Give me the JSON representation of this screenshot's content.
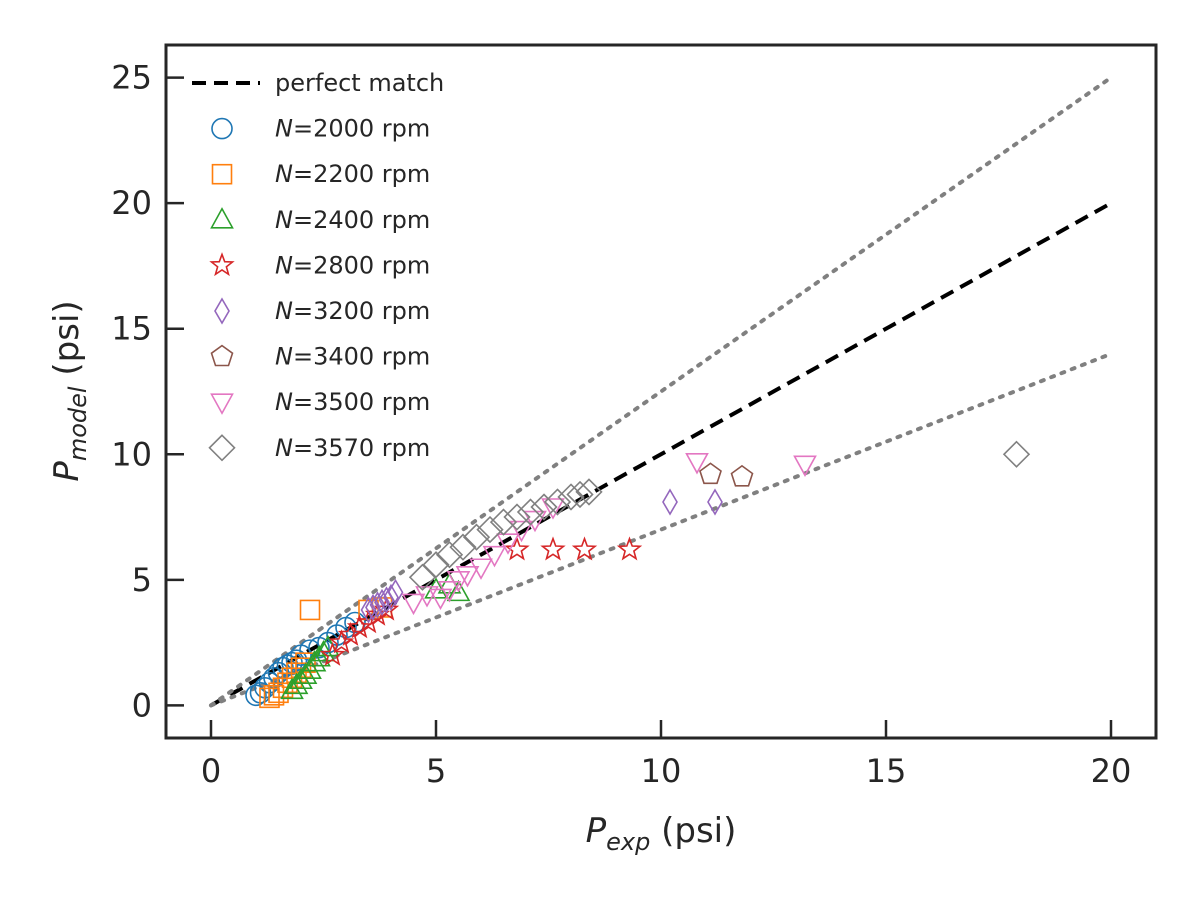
{
  "chart_data": {
    "type": "scatter",
    "title": "",
    "xlabel": {
      "main": "P",
      "sub": "exp",
      "unit": " (psi)"
    },
    "ylabel": {
      "main": "P",
      "sub": "model",
      "unit": " (psi)"
    },
    "xlim": [
      -1,
      21
    ],
    "ylim": [
      -1.3,
      26.3
    ],
    "xticks": [
      0,
      5,
      10,
      15,
      20
    ],
    "yticks": [
      0,
      5,
      10,
      15,
      20,
      25
    ],
    "grid": false,
    "legend_position": "top-left",
    "reference_lines": [
      {
        "name": "perfect match",
        "style": "dashed",
        "color": "#000000",
        "x": [
          0,
          20
        ],
        "y": [
          0,
          20
        ]
      },
      {
        "name": "",
        "style": "dotted",
        "color": "#808080",
        "x": [
          0,
          20
        ],
        "y": [
          0,
          25
        ]
      },
      {
        "name": "",
        "style": "dotted",
        "color": "#808080",
        "x": [
          0,
          20
        ],
        "y": [
          0,
          14
        ]
      }
    ],
    "series": [
      {
        "name": "2000",
        "marker": "circle",
        "color": "#1f77b4",
        "points": [
          [
            1.0,
            0.4
          ],
          [
            1.1,
            0.5
          ],
          [
            1.2,
            0.7
          ],
          [
            1.3,
            0.9
          ],
          [
            1.4,
            1.1
          ],
          [
            1.5,
            1.3
          ],
          [
            1.6,
            1.5
          ],
          [
            1.7,
            1.6
          ],
          [
            1.8,
            1.7
          ],
          [
            1.9,
            1.8
          ],
          [
            2.0,
            2.0
          ],
          [
            2.2,
            2.2
          ],
          [
            2.4,
            2.3
          ],
          [
            2.6,
            2.5
          ],
          [
            2.8,
            2.8
          ],
          [
            3.0,
            3.1
          ],
          [
            3.2,
            3.3
          ]
        ]
      },
      {
        "name": "2200",
        "marker": "square",
        "color": "#ff7f0e",
        "points": [
          [
            1.3,
            0.3
          ],
          [
            1.4,
            0.4
          ],
          [
            1.5,
            0.5
          ],
          [
            1.6,
            0.7
          ],
          [
            1.7,
            0.9
          ],
          [
            1.8,
            1.1
          ],
          [
            1.9,
            1.3
          ],
          [
            2.0,
            1.5
          ],
          [
            2.1,
            1.7
          ],
          [
            2.2,
            3.8
          ],
          [
            3.5,
            3.8
          ],
          [
            3.8,
            3.9
          ]
        ]
      },
      {
        "name": "2400",
        "marker": "triangle-up",
        "color": "#2ca02c",
        "points": [
          [
            1.8,
            0.6
          ],
          [
            1.9,
            0.8
          ],
          [
            2.0,
            1.0
          ],
          [
            2.1,
            1.2
          ],
          [
            2.2,
            1.4
          ],
          [
            2.3,
            1.7
          ],
          [
            2.4,
            1.9
          ],
          [
            2.5,
            2.1
          ],
          [
            2.6,
            2.3
          ],
          [
            5.0,
            4.6
          ],
          [
            5.3,
            4.8
          ],
          [
            5.5,
            4.5
          ]
        ]
      },
      {
        "name": "2800",
        "marker": "star",
        "color": "#d62728",
        "points": [
          [
            2.7,
            2.0
          ],
          [
            2.9,
            2.5
          ],
          [
            3.1,
            2.8
          ],
          [
            3.3,
            3.1
          ],
          [
            3.5,
            3.3
          ],
          [
            3.7,
            3.6
          ],
          [
            3.9,
            3.8
          ],
          [
            6.8,
            6.2
          ],
          [
            7.6,
            6.2
          ],
          [
            8.3,
            6.2
          ],
          [
            9.3,
            6.2
          ]
        ]
      },
      {
        "name": "3200",
        "marker": "diamond-thin",
        "color": "#9467bd",
        "points": [
          [
            3.5,
            3.8
          ],
          [
            3.6,
            3.9
          ],
          [
            3.7,
            4.0
          ],
          [
            3.8,
            4.1
          ],
          [
            3.9,
            4.2
          ],
          [
            4.0,
            4.3
          ],
          [
            4.1,
            4.5
          ],
          [
            10.2,
            8.1
          ],
          [
            11.2,
            8.1
          ]
        ]
      },
      {
        "name": "3400",
        "marker": "pentagon",
        "color": "#8c564b",
        "points": [
          [
            11.1,
            9.2
          ],
          [
            11.8,
            9.1
          ]
        ]
      },
      {
        "name": "3500",
        "marker": "triangle-down",
        "color": "#e377c2",
        "points": [
          [
            4.5,
            4.1
          ],
          [
            4.8,
            4.4
          ],
          [
            5.1,
            4.3
          ],
          [
            5.3,
            4.6
          ],
          [
            5.5,
            5.0
          ],
          [
            5.7,
            5.2
          ],
          [
            6.0,
            5.5
          ],
          [
            6.3,
            6.0
          ],
          [
            6.6,
            6.5
          ],
          [
            6.9,
            7.0
          ],
          [
            7.2,
            7.4
          ],
          [
            7.6,
            7.9
          ],
          [
            10.8,
            9.7
          ],
          [
            13.2,
            9.6
          ]
        ]
      },
      {
        "name": "3570",
        "marker": "diamond",
        "color": "#808080",
        "points": [
          [
            4.7,
            5.1
          ],
          [
            5.0,
            5.6
          ],
          [
            5.3,
            6.0
          ],
          [
            5.6,
            6.3
          ],
          [
            5.9,
            6.7
          ],
          [
            6.2,
            7.0
          ],
          [
            6.5,
            7.3
          ],
          [
            6.8,
            7.5
          ],
          [
            7.1,
            7.7
          ],
          [
            7.4,
            7.9
          ],
          [
            7.7,
            8.1
          ],
          [
            8.0,
            8.3
          ],
          [
            8.2,
            8.4
          ],
          [
            8.4,
            8.5
          ],
          [
            17.9,
            10.0
          ]
        ]
      }
    ],
    "legend": [
      {
        "label": "perfect match",
        "type": "line",
        "style": "dashed",
        "color": "#000000"
      },
      {
        "prefix": "N",
        "label": "=2000 rpm",
        "marker": "circle",
        "color": "#1f77b4"
      },
      {
        "prefix": "N",
        "label": "=2200 rpm",
        "marker": "square",
        "color": "#ff7f0e"
      },
      {
        "prefix": "N",
        "label": "=2400 rpm",
        "marker": "triangle-up",
        "color": "#2ca02c"
      },
      {
        "prefix": "N",
        "label": "=2800 rpm",
        "marker": "star",
        "color": "#d62728"
      },
      {
        "prefix": "N",
        "label": "=3200 rpm",
        "marker": "diamond-thin",
        "color": "#9467bd"
      },
      {
        "prefix": "N",
        "label": "=3400 rpm",
        "marker": "pentagon",
        "color": "#8c564b"
      },
      {
        "prefix": "N",
        "label": "=3500 rpm",
        "marker": "triangle-down",
        "color": "#e377c2"
      },
      {
        "prefix": "N",
        "label": "=3570 rpm",
        "marker": "diamond",
        "color": "#808080"
      }
    ]
  }
}
